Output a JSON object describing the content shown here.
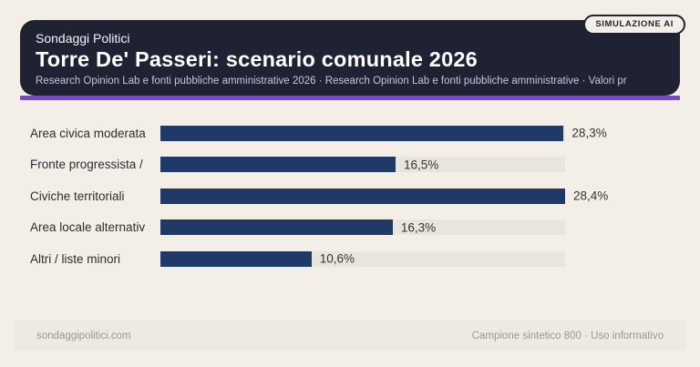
{
  "badge": {
    "label": "SIMULAZIONE AI"
  },
  "header": {
    "kicker": "Sondaggi Politici",
    "title": "Torre De' Passeri: scenario comunale 2026",
    "subtitle": "Research Opinion Lab e fonti pubbliche amministrative 2026 · Research Opinion Lab e fonti pubbliche amministrative · Valori pr"
  },
  "chart_data": {
    "type": "bar",
    "orientation": "horizontal",
    "title": "Torre De' Passeri: scenario comunale 2026",
    "categories": [
      "Area civica moderata",
      "Fronte progressista /",
      "Civiche territoriali",
      "Area locale alternativ",
      "Altri / liste minori"
    ],
    "values": [
      28.3,
      16.5,
      28.4,
      16.3,
      10.6
    ],
    "value_labels": [
      "28,3%",
      "16,5%",
      "28,4%",
      "16,3%",
      "10,6%"
    ],
    "unit": "%",
    "axis_max": 28.4,
    "grid": false,
    "legend": false,
    "bar_color": "#1f3a68",
    "track_color": "#e8e5dd"
  },
  "footer": {
    "left": "sondaggipolitici.com",
    "right": "Campione sintetico 800 · Uso informativo"
  },
  "colors": {
    "page_background": "#f4efe6",
    "header_background": "#1f2233",
    "accent": "#7b42dd",
    "bar": "#1f3a68",
    "track": "#e8e5dd",
    "footer_background": "#ebeae3"
  }
}
